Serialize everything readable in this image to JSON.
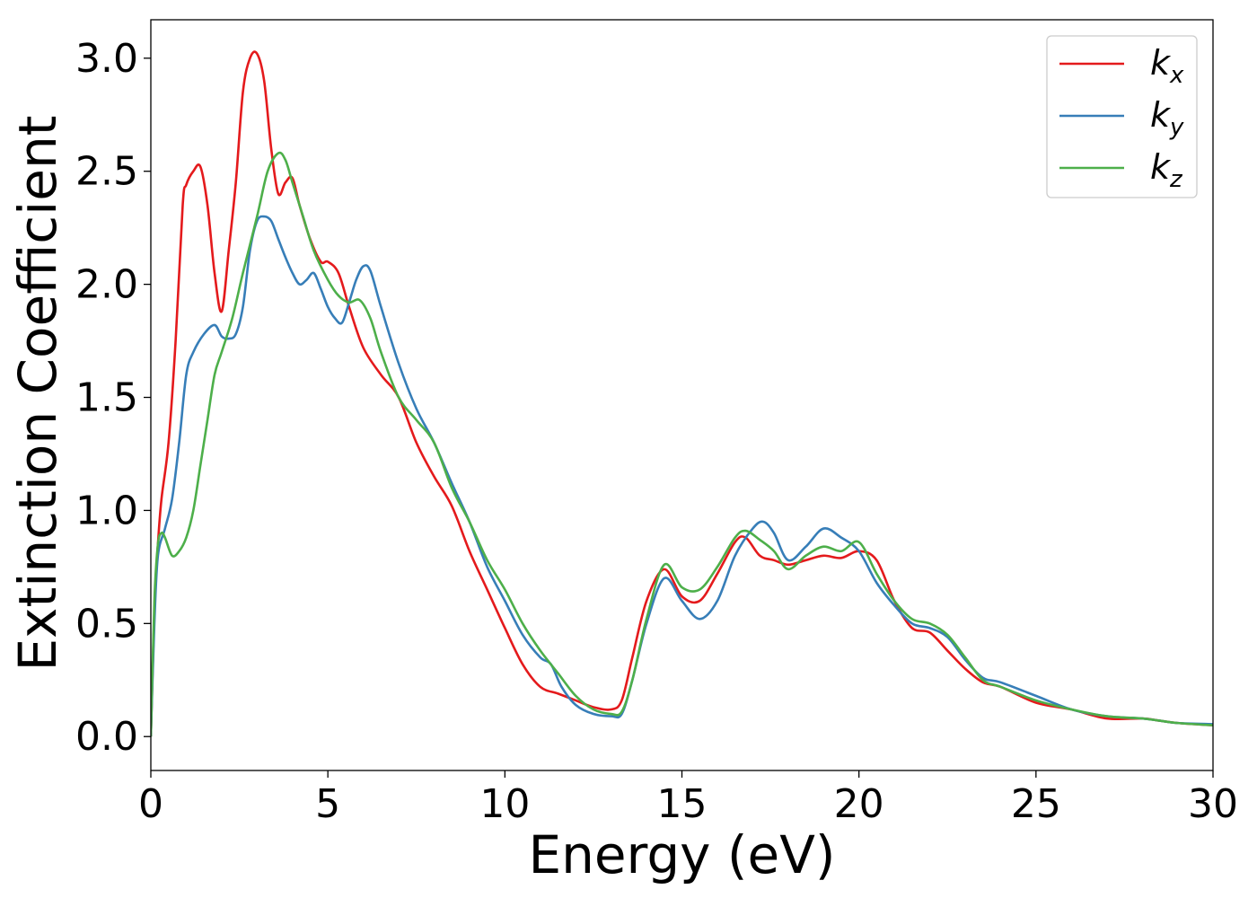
{
  "chart_data": {
    "type": "line",
    "title": "",
    "xlabel": "Energy (eV)",
    "ylabel": "Extinction Coefficient",
    "xlim": [
      0,
      30
    ],
    "ylim": [
      -0.15,
      3.17
    ],
    "xticks": [
      0,
      5,
      10,
      15,
      20,
      25,
      30
    ],
    "xtick_labels": [
      "0",
      "5",
      "10",
      "15",
      "20",
      "25",
      "30"
    ],
    "yticks": [
      0.0,
      0.5,
      1.0,
      1.5,
      2.0,
      2.5,
      3.0
    ],
    "ytick_labels": [
      "0.0",
      "0.5",
      "1.0",
      "1.5",
      "2.0",
      "2.5",
      "3.0"
    ],
    "grid": false,
    "legend_position": "top-right",
    "series": [
      {
        "name": "k",
        "subscript": "x",
        "color": "#e41a1c",
        "x": [
          0.0,
          0.1,
          0.2,
          0.3,
          0.5,
          0.7,
          0.9,
          1.0,
          1.2,
          1.4,
          1.6,
          1.8,
          2.0,
          2.2,
          2.4,
          2.6,
          2.8,
          3.0,
          3.2,
          3.4,
          3.6,
          3.8,
          4.0,
          4.2,
          4.5,
          4.8,
          5.0,
          5.3,
          5.6,
          6.0,
          6.5,
          7.0,
          7.5,
          8.0,
          8.5,
          9.0,
          9.5,
          10.0,
          10.5,
          11.0,
          11.5,
          12.0,
          12.5,
          13.0,
          13.3,
          13.6,
          14.0,
          14.5,
          15.0,
          15.5,
          16.0,
          16.5,
          16.8,
          17.2,
          17.6,
          18.0,
          18.5,
          19.0,
          19.5,
          20.0,
          20.5,
          21.0,
          21.5,
          22.0,
          22.5,
          23.0,
          23.5,
          24.0,
          25.0,
          26.0,
          27.0,
          28.0,
          28.5,
          29.0,
          30.0
        ],
        "y": [
          0.0,
          0.55,
          0.85,
          1.05,
          1.3,
          1.75,
          2.35,
          2.44,
          2.5,
          2.52,
          2.35,
          2.05,
          1.88,
          2.15,
          2.45,
          2.85,
          3.0,
          3.02,
          2.9,
          2.6,
          2.4,
          2.45,
          2.47,
          2.35,
          2.2,
          2.1,
          2.1,
          2.05,
          1.9,
          1.72,
          1.6,
          1.5,
          1.3,
          1.15,
          1.02,
          0.82,
          0.65,
          0.48,
          0.32,
          0.22,
          0.19,
          0.16,
          0.13,
          0.12,
          0.16,
          0.35,
          0.6,
          0.74,
          0.62,
          0.6,
          0.72,
          0.86,
          0.88,
          0.8,
          0.78,
          0.76,
          0.78,
          0.8,
          0.79,
          0.82,
          0.78,
          0.6,
          0.48,
          0.46,
          0.38,
          0.3,
          0.24,
          0.22,
          0.15,
          0.12,
          0.08,
          0.08,
          0.07,
          0.06,
          0.05
        ]
      },
      {
        "name": "k",
        "subscript": "y",
        "color": "#377eb8",
        "x": [
          0.0,
          0.1,
          0.2,
          0.4,
          0.6,
          0.8,
          1.0,
          1.2,
          1.5,
          1.8,
          2.0,
          2.2,
          2.4,
          2.6,
          2.8,
          3.0,
          3.2,
          3.4,
          3.6,
          3.8,
          4.0,
          4.2,
          4.4,
          4.6,
          4.8,
          5.0,
          5.2,
          5.4,
          5.6,
          5.8,
          6.0,
          6.2,
          6.5,
          7.0,
          7.5,
          8.0,
          8.5,
          9.0,
          9.5,
          10.0,
          10.5,
          11.0,
          11.3,
          11.6,
          12.0,
          12.5,
          13.0,
          13.3,
          13.6,
          14.0,
          14.5,
          15.0,
          15.5,
          16.0,
          16.5,
          17.0,
          17.3,
          17.6,
          18.0,
          18.5,
          19.0,
          19.5,
          20.0,
          20.5,
          21.0,
          21.5,
          22.0,
          22.5,
          23.0,
          23.5,
          24.0,
          25.0,
          26.0,
          27.0,
          28.0,
          28.5,
          29.0,
          30.0
        ],
        "y": [
          0.0,
          0.5,
          0.8,
          0.92,
          1.05,
          1.3,
          1.6,
          1.7,
          1.78,
          1.82,
          1.77,
          1.76,
          1.78,
          1.9,
          2.15,
          2.28,
          2.3,
          2.28,
          2.2,
          2.12,
          2.05,
          2.0,
          2.02,
          2.05,
          1.98,
          1.9,
          1.85,
          1.83,
          1.92,
          2.02,
          2.08,
          2.06,
          1.9,
          1.65,
          1.45,
          1.3,
          1.12,
          0.95,
          0.75,
          0.6,
          0.45,
          0.35,
          0.32,
          0.22,
          0.14,
          0.1,
          0.09,
          0.1,
          0.25,
          0.5,
          0.7,
          0.6,
          0.52,
          0.6,
          0.8,
          0.92,
          0.95,
          0.9,
          0.78,
          0.84,
          0.92,
          0.88,
          0.82,
          0.68,
          0.58,
          0.5,
          0.48,
          0.44,
          0.34,
          0.26,
          0.24,
          0.18,
          0.12,
          0.09,
          0.08,
          0.07,
          0.06,
          0.055
        ]
      },
      {
        "name": "k",
        "subscript": "z",
        "color": "#4daf4a",
        "x": [
          0.0,
          0.1,
          0.2,
          0.3,
          0.4,
          0.6,
          0.8,
          1.0,
          1.2,
          1.4,
          1.6,
          1.8,
          2.0,
          2.3,
          2.6,
          3.0,
          3.3,
          3.6,
          3.8,
          4.0,
          4.3,
          4.6,
          5.0,
          5.3,
          5.6,
          5.9,
          6.2,
          6.5,
          7.0,
          7.5,
          8.0,
          8.5,
          9.0,
          9.5,
          10.0,
          10.5,
          11.0,
          11.5,
          12.0,
          12.5,
          13.0,
          13.3,
          13.6,
          14.0,
          14.5,
          15.0,
          15.5,
          16.0,
          16.5,
          16.8,
          17.2,
          17.6,
          18.0,
          18.5,
          19.0,
          19.5,
          20.0,
          20.5,
          21.0,
          21.5,
          22.0,
          22.5,
          23.0,
          23.5,
          24.0,
          25.0,
          26.0,
          27.0,
          28.0,
          28.5,
          29.0,
          30.0
        ],
        "y": [
          0.0,
          0.6,
          0.85,
          0.9,
          0.88,
          0.8,
          0.82,
          0.88,
          1.0,
          1.2,
          1.4,
          1.6,
          1.7,
          1.85,
          2.05,
          2.3,
          2.5,
          2.58,
          2.55,
          2.45,
          2.3,
          2.15,
          2.02,
          1.95,
          1.92,
          1.93,
          1.85,
          1.7,
          1.5,
          1.4,
          1.3,
          1.1,
          0.95,
          0.78,
          0.65,
          0.5,
          0.38,
          0.28,
          0.18,
          0.12,
          0.1,
          0.11,
          0.25,
          0.52,
          0.76,
          0.66,
          0.65,
          0.75,
          0.88,
          0.91,
          0.87,
          0.82,
          0.74,
          0.8,
          0.84,
          0.82,
          0.86,
          0.72,
          0.6,
          0.52,
          0.5,
          0.45,
          0.35,
          0.25,
          0.22,
          0.16,
          0.12,
          0.09,
          0.08,
          0.07,
          0.06,
          0.05
        ]
      }
    ]
  }
}
